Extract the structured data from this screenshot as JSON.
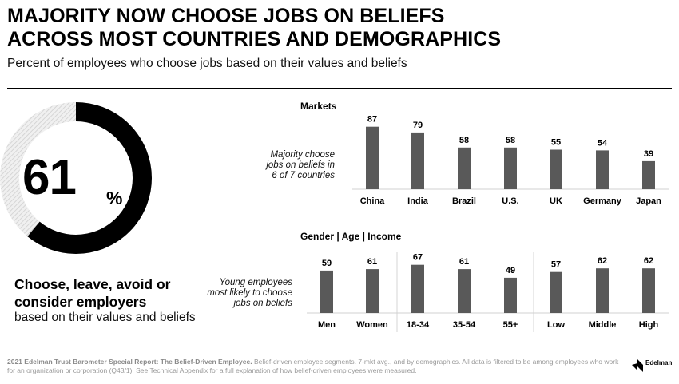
{
  "title_line1": "MAJORITY NOW CHOOSE JOBS ON BELIEFS",
  "title_line2": "ACROSS MOST COUNTRIES AND DEMOGRAPHICS",
  "subtitle": "Percent of employees who choose jobs based on their values and beliefs",
  "big_stat": {
    "value": "61",
    "unit": "%",
    "fraction": 0.61
  },
  "headline_line1": "Choose, leave, avoid or",
  "headline_line2": "consider employers",
  "headline_sub": "based on their values and beliefs",
  "chart_data": [
    {
      "type": "bar",
      "title": "Markets",
      "annotation": [
        "Majority choose",
        "jobs on beliefs in",
        "6 of 7 countries"
      ],
      "categories": [
        "China",
        "India",
        "Brazil",
        "U.S.",
        "UK",
        "Germany",
        "Japan"
      ],
      "values": [
        87,
        79,
        58,
        58,
        55,
        54,
        39
      ],
      "value_labels": [
        "87",
        "79",
        "58",
        "58",
        "55",
        "54",
        "39"
      ],
      "ylim": [
        0,
        100
      ]
    },
    {
      "type": "bar",
      "title": "Gender | Age | Income",
      "annotation": [
        "Young employees",
        "most likely to choose",
        "jobs on beliefs"
      ],
      "groups": [
        "Gender",
        "Age",
        "Income"
      ],
      "categories": [
        "Men",
        "Women",
        "18-34",
        "35-54",
        "55+",
        "Low",
        "Middle",
        "High"
      ],
      "values": [
        59,
        61,
        67,
        61,
        49,
        57,
        62,
        62
      ],
      "value_labels": [
        "59",
        "61",
        "67",
        "61",
        "49",
        "57",
        "62",
        "62"
      ],
      "ylim": [
        0,
        100
      ]
    }
  ],
  "footnote_bold": "2021 Edelman Trust Barometer Special Report: The Belief-Driven Employee.",
  "footnote_rest": " Belief-driven employee segments. 7-mkt avg., and by demographics. All data is filtered to be among employees who work for an organization or corporation (Q43/1). See Technical Appendix for a full explanation of how belief-driven employees were measured.",
  "logo_text": "Edelman",
  "colors": {
    "bar": "#595959",
    "donut_fill": "#000000",
    "donut_rest": "#e3e3e3"
  }
}
